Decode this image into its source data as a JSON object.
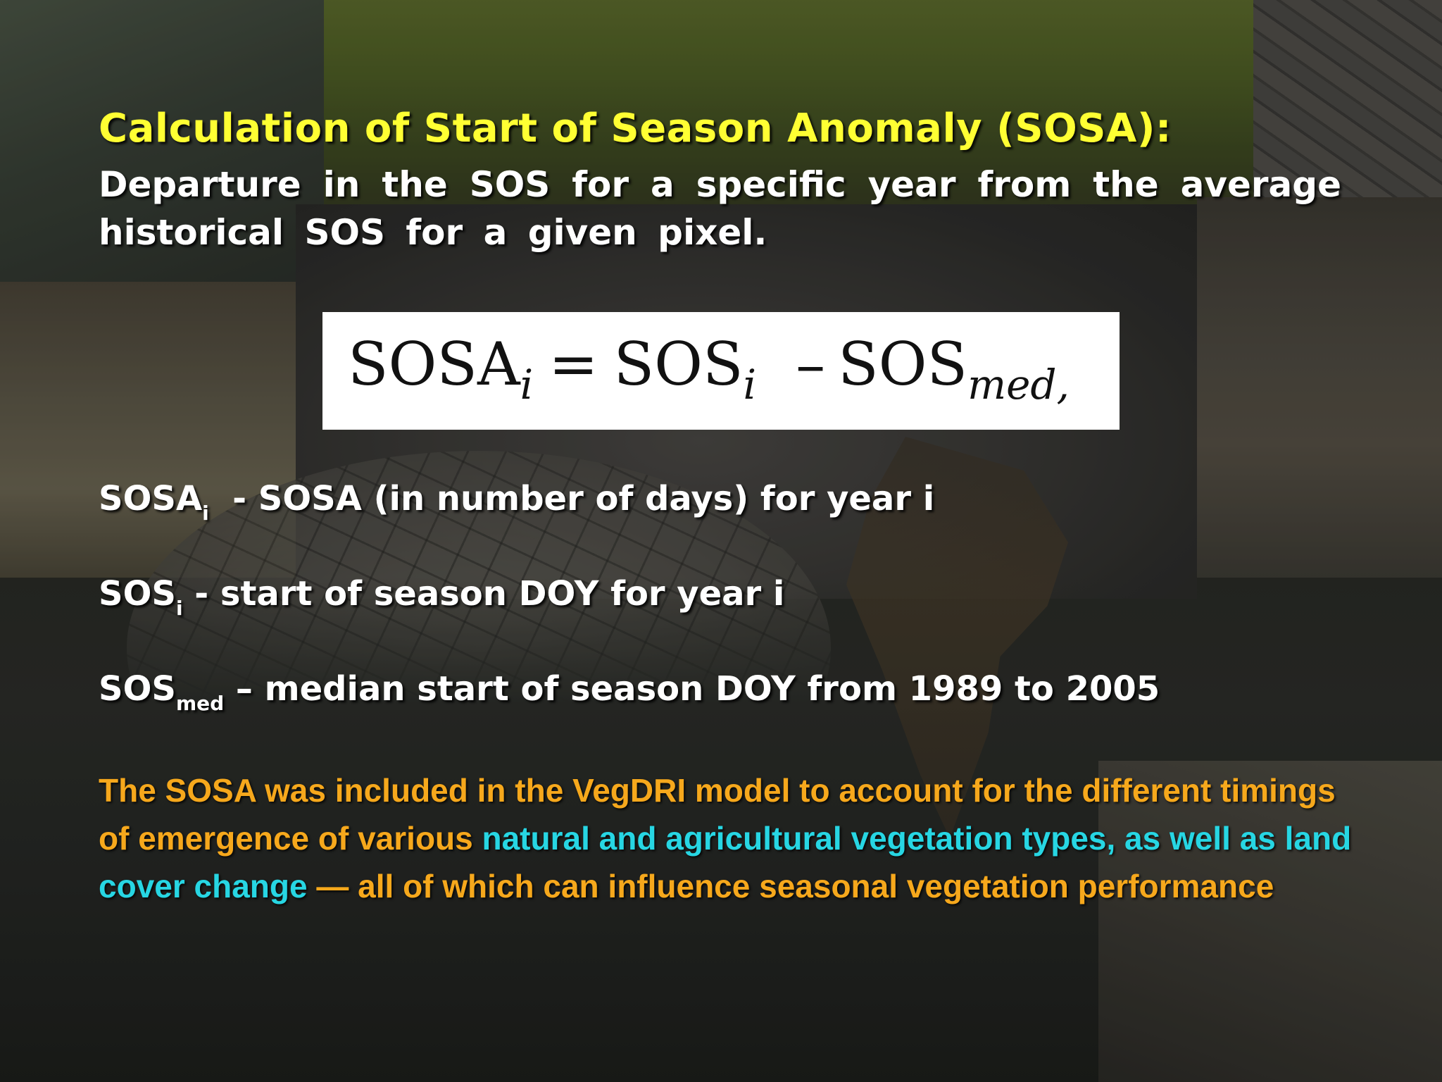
{
  "slide": {
    "title": "Calculation of Start of Season Anomaly (SOSA):",
    "definition": "Departure in the SOS for a specific year from the average historical SOS for a given pixel."
  },
  "formula": {
    "lhs": "SOSA",
    "lhs_sub": "i",
    "equals": "=",
    "term1": "SOS",
    "term1_sub": "i",
    "minus": "–",
    "term2": "SOS",
    "term2_sub": "med,"
  },
  "definitions": [
    {
      "symbol": "SOSA",
      "sub": "i",
      "text": "  - SOSA (in number of days) for year i"
    },
    {
      "symbol": "SOS",
      "sub": "i",
      "text": " - start of season DOY for year i"
    },
    {
      "symbol": "SOS",
      "sub": "med",
      "text": " – median start of season DOY from 1989 to 2005"
    }
  ],
  "note": {
    "part1": "The SOSA was included in the VegDRI model to account for the different timings of emergence of various ",
    "part2": "natural and agricultural vegetation types, as well as land cover change",
    "part3": " — all of which can influence seasonal vegetation performance"
  },
  "colors": {
    "title": "#ffff33",
    "body_text": "#ffffff",
    "note_orange": "#f6a81c",
    "note_cyan": "#27d6e3",
    "formula_box": "#ffffff"
  }
}
